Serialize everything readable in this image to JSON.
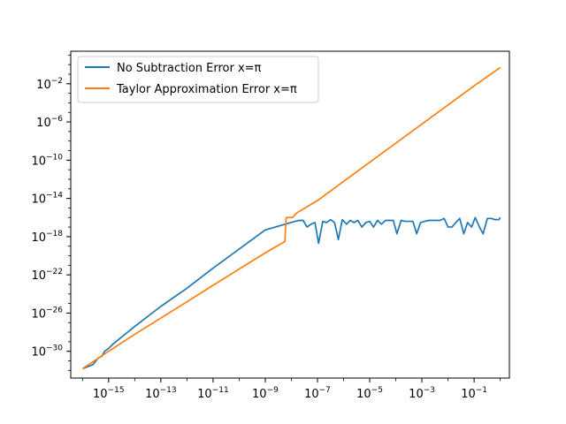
{
  "chart_data": {
    "type": "line",
    "title": "",
    "xlabel": "",
    "ylabel": "",
    "xscale": "log",
    "yscale": "log",
    "xlim": [
      1e-16,
      1
    ],
    "ylim": [
      1e-33,
      1.0
    ],
    "grid": false,
    "legend_placement": "top-left",
    "x_ticks": [
      {
        "exp": -15,
        "label": "10",
        "sup": "−15"
      },
      {
        "exp": -13,
        "label": "10",
        "sup": "−13"
      },
      {
        "exp": -11,
        "label": "10",
        "sup": "−11"
      },
      {
        "exp": -9,
        "label": "10",
        "sup": "−9"
      },
      {
        "exp": -7,
        "label": "10",
        "sup": "−7"
      },
      {
        "exp": -5,
        "label": "10",
        "sup": "−5"
      },
      {
        "exp": -3,
        "label": "10",
        "sup": "−3"
      },
      {
        "exp": -1,
        "label": "10",
        "sup": "−1"
      }
    ],
    "y_ticks": [
      {
        "exp": -30,
        "label": "10",
        "sup": "−30"
      },
      {
        "exp": -26,
        "label": "10",
        "sup": "−26"
      },
      {
        "exp": -22,
        "label": "10",
        "sup": "−22"
      },
      {
        "exp": -18,
        "label": "10",
        "sup": "−18"
      },
      {
        "exp": -14,
        "label": "10",
        "sup": "−14"
      },
      {
        "exp": -10,
        "label": "10",
        "sup": "−10"
      },
      {
        "exp": -6,
        "label": "10",
        "sup": "−6"
      },
      {
        "exp": -2,
        "label": "10",
        "sup": "−2"
      }
    ],
    "series": [
      {
        "name": "No Subtraction Error x=π",
        "color": "#1f77b4",
        "points": [
          [
            1e-16,
            1.5e-32
          ],
          [
            2.5e-16,
            4e-32
          ],
          [
            4e-16,
            2e-31
          ],
          [
            5.5e-16,
            3e-31
          ],
          [
            7e-16,
            1e-30
          ],
          [
            1e-15,
            2e-30
          ],
          [
            1.5e-15,
            6e-30
          ],
          [
            1e-14,
            4e-28
          ],
          [
            1e-13,
            5e-26
          ],
          [
            1e-12,
            4e-24
          ],
          [
            1e-11,
            5e-22
          ],
          [
            1e-10,
            5e-20
          ],
          [
            1e-09,
            5e-18
          ],
          [
            1.4e-08,
            4e-17
          ],
          [
            2e-08,
            5e-17
          ],
          [
            2.8e-08,
            5e-17
          ],
          [
            4e-08,
            1e-17
          ],
          [
            5.6e-08,
            2e-17
          ],
          [
            8e-08,
            3e-17
          ],
          [
            1.1e-07,
            2e-19
          ],
          [
            1.6e-07,
            4e-17
          ],
          [
            2.2e-07,
            3e-17
          ],
          [
            3.2e-07,
            6e-17
          ],
          [
            4.5e-07,
            3e-17
          ],
          [
            6.3e-07,
            5e-19
          ],
          [
            8.9e-07,
            6e-17
          ],
          [
            1.3e-06,
            2e-17
          ],
          [
            1.8e-06,
            5e-17
          ],
          [
            2.5e-06,
            3e-17
          ],
          [
            3.5e-06,
            5e-17
          ],
          [
            5e-06,
            1e-17
          ],
          [
            7.1e-06,
            3e-17
          ],
          [
            1e-05,
            4e-17
          ],
          [
            1.4e-05,
            1e-17
          ],
          [
            2e-05,
            5e-17
          ],
          [
            2.8e-05,
            2e-17
          ],
          [
            4e-05,
            5e-17
          ],
          [
            5.6e-05,
            5e-17
          ],
          [
            8e-05,
            5e-17
          ],
          [
            0.00011,
            2e-18
          ],
          [
            0.00016,
            5e-17
          ],
          [
            0.00022,
            4e-17
          ],
          [
            0.00032,
            4e-17
          ],
          [
            0.00045,
            4e-17
          ],
          [
            0.00063,
            2e-18
          ],
          [
            0.00089,
            3e-17
          ],
          [
            0.0013,
            4e-17
          ],
          [
            0.0018,
            5e-17
          ],
          [
            0.0025,
            5e-17
          ],
          [
            0.0035,
            5e-17
          ],
          [
            0.005,
            5e-17
          ],
          [
            0.0071,
            8e-17
          ],
          [
            0.01,
            1e-17
          ],
          [
            0.014,
            1e-17
          ],
          [
            0.02,
            3e-17
          ],
          [
            0.028,
            8e-17
          ],
          [
            0.04,
            2e-18
          ],
          [
            0.056,
            3e-17
          ],
          [
            0.08,
            1e-17
          ],
          [
            0.11,
            1e-16
          ],
          [
            0.16,
            1e-17
          ],
          [
            0.22,
            2e-18
          ],
          [
            0.32,
            8e-17
          ],
          [
            0.45,
            8e-17
          ],
          [
            0.63,
            6e-17
          ],
          [
            0.89,
            6e-17
          ],
          [
            1,
            1e-16
          ]
        ]
      },
      {
        "name": "Taylor Approximation Error x=π",
        "color": "#ff7f0e",
        "points": [
          [
            1e-16,
            1.5e-32
          ],
          [
            1e-15,
            1e-30
          ],
          [
            1e-14,
            6e-29
          ],
          [
            1e-13,
            3e-27
          ],
          [
            1e-12,
            1.5e-25
          ],
          [
            1e-11,
            8e-24
          ],
          [
            1e-10,
            4e-22
          ],
          [
            1e-09,
            2e-20
          ],
          [
            5.6e-09,
            3e-19
          ],
          [
            6.3e-09,
            1e-16
          ],
          [
            8e-09,
            1e-16
          ],
          [
            1.1e-08,
            1e-16
          ],
          [
            1.6e-08,
            3e-16
          ],
          [
            1e-07,
            6e-15
          ],
          [
            1e-06,
            6e-13
          ],
          [
            1e-05,
            6e-11
          ],
          [
            0.0001,
            6e-09
          ],
          [
            0.001,
            6e-07
          ],
          [
            0.01,
            6e-05
          ],
          [
            0.1,
            0.006
          ],
          [
            1,
            0.5
          ]
        ]
      }
    ]
  }
}
